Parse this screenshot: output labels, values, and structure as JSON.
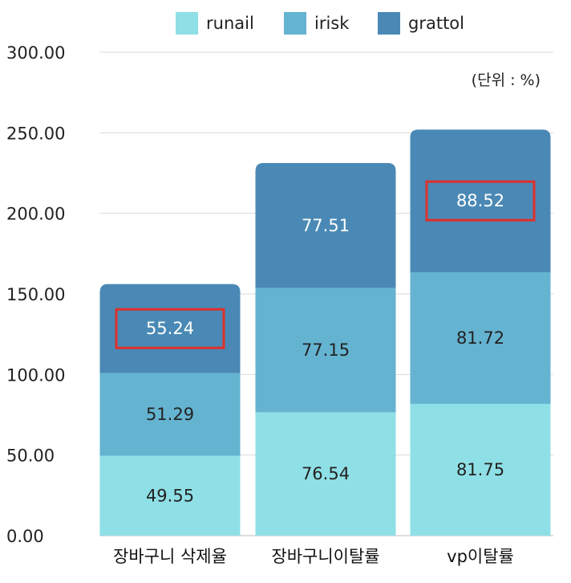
{
  "chart_data": {
    "type": "bar",
    "stacked": true,
    "unit_note": "(단위 : %)",
    "categories": [
      "장바구니 삭제율",
      "장바구니이탈률",
      "vp이탈률"
    ],
    "series": [
      {
        "name": "runail",
        "color": "#8fe0e6",
        "text_color": "#222222",
        "values": [
          49.55,
          76.54,
          81.75
        ]
      },
      {
        "name": "irisk",
        "color": "#64b3d1",
        "text_color": "#222222",
        "values": [
          51.29,
          77.15,
          81.72
        ]
      },
      {
        "name": "grattol",
        "color": "#4a89b5",
        "text_color": "#ffffff",
        "values": [
          55.24,
          77.51,
          88.52
        ]
      }
    ],
    "value_labels": [
      [
        "49.55",
        "76.54",
        "81.75"
      ],
      [
        "51.29",
        "77.15",
        "81.72"
      ],
      [
        "55.24",
        "77.51",
        "88.52"
      ]
    ],
    "highlighted": [
      {
        "series": 2,
        "category": 0,
        "color": "#e0302a"
      },
      {
        "series": 2,
        "category": 2,
        "color": "#e0302a"
      }
    ],
    "ylim": [
      0,
      300
    ],
    "yticks": [
      "0.00",
      "50.00",
      "100.00",
      "150.00",
      "200.00",
      "250.00",
      "300.00"
    ],
    "ytick_values": [
      0,
      50,
      100,
      150,
      200,
      250,
      300
    ],
    "grid": true,
    "legend_position": "top"
  }
}
